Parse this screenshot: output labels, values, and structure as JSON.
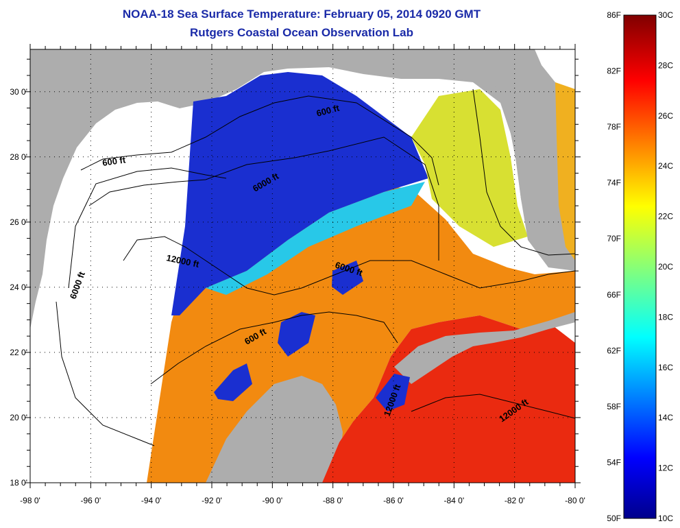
{
  "header": {
    "title": "NOAA-18 Sea Surface Temperature:  February 05, 2014 0920 GMT",
    "subtitle": "Rutgers Coastal Ocean Observation Lab"
  },
  "map": {
    "lon_ticks": [
      "-98 0'",
      "-96 0'",
      "-94 0'",
      "-92 0'",
      "-90 0'",
      "-88 0'",
      "-86 0'",
      "-84 0'",
      "-82 0'",
      "-80 0'"
    ],
    "lat_ticks": [
      "18 0'",
      "20 0'",
      "22 0'",
      "24 0'",
      "26 0'",
      "28 0'",
      "30 0'"
    ],
    "contour_labels": [
      "600 ft",
      "6000 ft",
      "12000 ft",
      "6000 ft",
      "600 ft",
      "6000 ft",
      "600 ft",
      "12000 ft",
      "12000 ft"
    ],
    "colors": {
      "land": "#adadad",
      "no_data": "#ffffff",
      "contour": "#000000"
    }
  },
  "colorbar": {
    "f_labels": [
      "86F",
      "82F",
      "78F",
      "74F",
      "70F",
      "66F",
      "62F",
      "58F",
      "54F",
      "50F"
    ],
    "c_labels": [
      "30C",
      "28C",
      "26C",
      "24C",
      "22C",
      "20C",
      "18C",
      "16C",
      "14C",
      "12C",
      "10C"
    ],
    "f_range": [
      50,
      86
    ],
    "c_range": [
      10,
      30
    ]
  }
}
